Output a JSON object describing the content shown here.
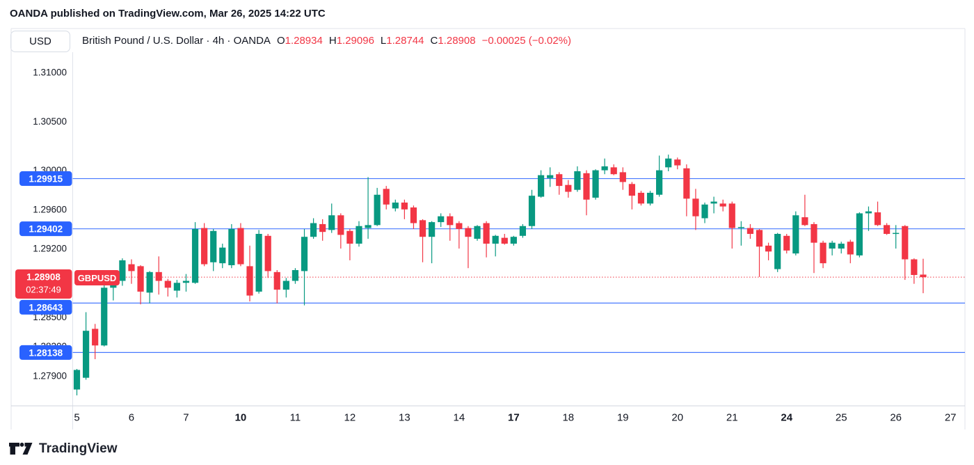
{
  "header": {
    "text": "OANDA published on TradingView.com, Mar 26, 2025 14:22 UTC"
  },
  "toolbar": {
    "currency_button": "USD"
  },
  "title": {
    "symbol_title": "British Pound / U.S. Dollar · 4h · OANDA",
    "ohlc": [
      {
        "k": "O",
        "v": "1.28934"
      },
      {
        "k": "H",
        "v": "1.29096"
      },
      {
        "k": "L",
        "v": "1.28744"
      },
      {
        "k": "C",
        "v": "1.28908"
      }
    ],
    "change": "−0.00025 (−0.02%)"
  },
  "footer": {
    "brand": "TradingView",
    "logo_icon": "tradingview-logo"
  },
  "colors": {
    "up": "#089981",
    "down": "#f23645",
    "alert_blue": "#2962ff",
    "badge_blue": "#2962ff",
    "badge_red": "#f23645",
    "text_dark": "#131722",
    "border_gray": "#e0e3eb",
    "axis_line": "#d1d4dc",
    "background": "#ffffff"
  },
  "chart_data": {
    "type": "candlestick",
    "symbol": "GBPUSD",
    "timeframe": "4h",
    "source": "OANDA",
    "title": "British Pound / U.S. Dollar",
    "grid": false,
    "legend_position": "none",
    "y_axis": {
      "side": "left",
      "visible_range": [
        1.2755,
        1.311
      ],
      "ticks": [
        {
          "label": "1.31000",
          "price": 1.31
        },
        {
          "label": "1.30500",
          "price": 1.305
        },
        {
          "label": "1.30000",
          "price": 1.3
        },
        {
          "label": "1.29600",
          "price": 1.296
        },
        {
          "label": "1.29200",
          "price": 1.292
        },
        {
          "label": "1.28500",
          "price": 1.285
        },
        {
          "label": "1.28200",
          "price": 1.282
        },
        {
          "label": "1.27900",
          "price": 1.279
        }
      ]
    },
    "x_axis": {
      "ticks": [
        {
          "label": "5",
          "index": 0,
          "bold": false
        },
        {
          "label": "6",
          "index": 6,
          "bold": false
        },
        {
          "label": "7",
          "index": 12,
          "bold": false
        },
        {
          "label": "10",
          "index": 18,
          "bold": true
        },
        {
          "label": "11",
          "index": 24,
          "bold": false
        },
        {
          "label": "12",
          "index": 30,
          "bold": false
        },
        {
          "label": "13",
          "index": 36,
          "bold": false
        },
        {
          "label": "14",
          "index": 42,
          "bold": false
        },
        {
          "label": "17",
          "index": 48,
          "bold": true
        },
        {
          "label": "18",
          "index": 54,
          "bold": false
        },
        {
          "label": "19",
          "index": 60,
          "bold": false
        },
        {
          "label": "20",
          "index": 66,
          "bold": false
        },
        {
          "label": "21",
          "index": 72,
          "bold": false
        },
        {
          "label": "24",
          "index": 78,
          "bold": true
        },
        {
          "label": "25",
          "index": 84,
          "bold": false
        },
        {
          "label": "26",
          "index": 90,
          "bold": false
        },
        {
          "label": "27",
          "index": 96,
          "bold": false
        }
      ]
    },
    "alert_lines": [
      {
        "label": "1.29915",
        "price": 1.29915,
        "badge_shift": 0
      },
      {
        "label": "1.29402",
        "price": 1.29402,
        "badge_shift": 0
      },
      {
        "label": "1.28643",
        "price": 1.28643,
        "badge_shift": 6
      },
      {
        "label": "1.28138",
        "price": 1.28138,
        "badge_shift": 0
      }
    ],
    "current_price": {
      "label": "1.28908",
      "price": 1.28908,
      "countdown": "02:37:49",
      "symbol_tag": "GBPUSD"
    },
    "candles": [
      [
        "Mar 5 00:00",
        1.2776,
        1.2797,
        1.277,
        1.2796
      ],
      [
        "Mar 5 04:00",
        1.2788,
        1.2855,
        1.2786,
        1.2836
      ],
      [
        "Mar 5 08:00",
        1.2838,
        1.2843,
        1.2807,
        1.2821
      ],
      [
        "Mar 5 12:00",
        1.2821,
        1.2884,
        1.282,
        1.288
      ],
      [
        "Mar 5 16:00",
        1.288,
        1.2887,
        1.2867,
        1.2885
      ],
      [
        "Mar 5 20:00",
        1.2887,
        1.291,
        1.2882,
        1.2908
      ],
      [
        "Mar 6 00:00",
        1.2904,
        1.2909,
        1.2884,
        1.2897
      ],
      [
        "Mar 6 04:00",
        1.2902,
        1.2903,
        1.2863,
        1.2876
      ],
      [
        "Mar 6 08:00",
        1.2875,
        1.2897,
        1.2864,
        1.2896
      ],
      [
        "Mar 6 12:00",
        1.2896,
        1.2912,
        1.2873,
        1.2887
      ],
      [
        "Mar 6 16:00",
        1.2887,
        1.2889,
        1.2871,
        1.288
      ],
      [
        "Mar 6 20:00",
        1.2877,
        1.2888,
        1.287,
        1.2885
      ],
      [
        "Mar 7 00:00",
        1.2885,
        1.2894,
        1.2876,
        1.2887
      ],
      [
        "Mar 7 04:00",
        1.2885,
        1.2947,
        1.2884,
        1.294
      ],
      [
        "Mar 7 08:00",
        1.2941,
        1.2946,
        1.2902,
        1.2904
      ],
      [
        "Mar 7 12:00",
        1.2906,
        1.294,
        1.2897,
        1.2938
      ],
      [
        "Mar 7 16:00",
        1.2905,
        1.2925,
        1.29,
        1.2921
      ],
      [
        "Mar 7 20:00",
        1.2903,
        1.2945,
        1.29,
        1.294
      ],
      [
        "Mar 10 00:00",
        1.2941,
        1.2946,
        1.2902,
        1.2904
      ],
      [
        "Mar 10 04:00",
        1.2902,
        1.2923,
        1.2866,
        1.2872
      ],
      [
        "Mar 10 08:00",
        1.2876,
        1.2939,
        1.2874,
        1.2935
      ],
      [
        "Mar 10 12:00",
        1.2933,
        1.2935,
        1.289,
        1.2897
      ],
      [
        "Mar 10 16:00",
        1.2896,
        1.2898,
        1.2864,
        1.2878
      ],
      [
        "Mar 10 20:00",
        1.2878,
        1.289,
        1.287,
        1.2887
      ],
      [
        "Mar 11 00:00",
        1.2887,
        1.29,
        1.2884,
        1.2898
      ],
      [
        "Mar 11 04:00",
        1.2897,
        1.294,
        1.2862,
        1.2932
      ],
      [
        "Mar 11 08:00",
        1.2932,
        1.2951,
        1.293,
        1.2946
      ],
      [
        "Mar 11 12:00",
        1.2945,
        1.295,
        1.2928,
        1.2937
      ],
      [
        "Mar 11 16:00",
        1.2939,
        1.2966,
        1.2936,
        1.2954
      ],
      [
        "Mar 11 20:00",
        1.2954,
        1.2956,
        1.292,
        1.2934
      ],
      [
        "Mar 12 00:00",
        1.2938,
        1.294,
        1.2908,
        1.2925
      ],
      [
        "Mar 12 04:00",
        1.2925,
        1.2948,
        1.2922,
        1.2943
      ],
      [
        "Mar 12 08:00",
        1.2941,
        1.2993,
        1.293,
        1.2944
      ],
      [
        "Mar 12 12:00",
        1.2944,
        1.2982,
        1.2943,
        1.2975
      ],
      [
        "Mar 12 16:00",
        1.2981,
        1.2984,
        1.296,
        1.2965
      ],
      [
        "Mar 12 20:00",
        1.2961,
        1.297,
        1.2958,
        1.2967
      ],
      [
        "Mar 13 00:00",
        1.2967,
        1.297,
        1.295,
        1.296
      ],
      [
        "Mar 13 04:00",
        1.2962,
        1.2964,
        1.294,
        1.2946
      ],
      [
        "Mar 13 08:00",
        1.2949,
        1.295,
        1.2906,
        1.2932
      ],
      [
        "Mar 13 12:00",
        1.2932,
        1.2948,
        1.2905,
        1.2947
      ],
      [
        "Mar 13 16:00",
        1.2947,
        1.2956,
        1.2942,
        1.2953
      ],
      [
        "Mar 13 20:00",
        1.2953,
        1.2956,
        1.2928,
        1.2944
      ],
      [
        "Mar 14 00:00",
        1.2946,
        1.2948,
        1.292,
        1.294
      ],
      [
        "Mar 14 04:00",
        1.2941,
        1.2943,
        1.29,
        1.2932
      ],
      [
        "Mar 14 08:00",
        1.293,
        1.2944,
        1.2928,
        1.2943
      ],
      [
        "Mar 14 12:00",
        1.2946,
        1.2948,
        1.2911,
        1.2925
      ],
      [
        "Mar 14 16:00",
        1.2925,
        1.2934,
        1.2912,
        1.2933
      ],
      [
        "Mar 14 20:00",
        1.2931,
        1.2935,
        1.2924,
        1.2925
      ],
      [
        "Mar 17 00:00",
        1.2925,
        1.2933,
        1.2923,
        1.2932
      ],
      [
        "Mar 17 04:00",
        1.2933,
        1.2945,
        1.2931,
        1.2943
      ],
      [
        "Mar 17 08:00",
        1.2943,
        1.298,
        1.294,
        1.2974
      ],
      [
        "Mar 17 12:00",
        1.2973,
        1.3,
        1.2972,
        1.2995
      ],
      [
        "Mar 17 16:00",
        1.2992,
        1.3003,
        1.2983,
        1.2995
      ],
      [
        "Mar 17 20:00",
        1.2996,
        1.2998,
        1.2975,
        1.2984
      ],
      [
        "Mar 18 00:00",
        1.2985,
        1.299,
        1.2972,
        1.2978
      ],
      [
        "Mar 18 04:00",
        1.298,
        1.3004,
        1.2978,
        1.2999
      ],
      [
        "Mar 18 08:00",
        1.2997,
        1.3,
        1.2954,
        1.297
      ],
      [
        "Mar 18 12:00",
        1.2972,
        1.3001,
        1.297,
        1.3
      ],
      [
        "Mar 18 16:00",
        1.3,
        1.3012,
        1.2996,
        1.3004
      ],
      [
        "Mar 18 20:00",
        1.3003,
        1.3006,
        1.2995,
        1.2996
      ],
      [
        "Mar 19 00:00",
        1.2998,
        1.3003,
        1.298,
        1.2988
      ],
      [
        "Mar 19 04:00",
        1.2986,
        1.2988,
        1.296,
        1.2974
      ],
      [
        "Mar 19 08:00",
        1.2977,
        1.2979,
        1.2964,
        1.2966
      ],
      [
        "Mar 19 12:00",
        1.2966,
        1.2979,
        1.2964,
        1.2977
      ],
      [
        "Mar 19 16:00",
        1.2975,
        1.3015,
        1.2973,
        1.3
      ],
      [
        "Mar 19 20:00",
        1.3003,
        1.3016,
        1.2999,
        1.3012
      ],
      [
        "Mar 20 00:00",
        1.3011,
        1.3013,
        1.3001,
        1.3005
      ],
      [
        "Mar 20 04:00",
        1.3002,
        1.3006,
        1.2953,
        1.2971
      ],
      [
        "Mar 20 08:00",
        1.2971,
        1.2981,
        1.2939,
        1.2953
      ],
      [
        "Mar 20 12:00",
        1.2951,
        1.2967,
        1.2946,
        1.2965
      ],
      [
        "Mar 20 16:00",
        1.2966,
        1.2973,
        1.2956,
        1.2968
      ],
      [
        "Mar 20 20:00",
        1.2966,
        1.297,
        1.2958,
        1.2963
      ],
      [
        "Mar 21 00:00",
        1.2966,
        1.2968,
        1.292,
        1.2941
      ],
      [
        "Mar 21 04:00",
        1.2942,
        1.2948,
        1.2923,
        1.2942
      ],
      [
        "Mar 21 08:00",
        1.2941,
        1.2945,
        1.293,
        1.2935
      ],
      [
        "Mar 21 12:00",
        1.2939,
        1.294,
        1.2891,
        1.2922
      ],
      [
        "Mar 21 16:00",
        1.2923,
        1.2926,
        1.2908,
        1.2917
      ],
      [
        "Mar 21 20:00",
        1.2899,
        1.2936,
        1.2896,
        1.2935
      ],
      [
        "Mar 24 00:00",
        1.2933,
        1.2935,
        1.2915,
        1.2918
      ],
      [
        "Mar 24 04:00",
        1.2915,
        1.2958,
        1.2913,
        1.2954
      ],
      [
        "Mar 24 08:00",
        1.2952,
        1.2975,
        1.2943,
        1.2944
      ],
      [
        "Mar 24 12:00",
        1.2945,
        1.2947,
        1.2895,
        1.2926
      ],
      [
        "Mar 24 16:00",
        1.2926,
        1.2928,
        1.29,
        1.2905
      ],
      [
        "Mar 24 20:00",
        1.292,
        1.2928,
        1.2913,
        1.2926
      ],
      [
        "Mar 25 00:00",
        1.292,
        1.2927,
        1.2915,
        1.2925
      ],
      [
        "Mar 25 04:00",
        1.2927,
        1.2929,
        1.2905,
        1.2914
      ],
      [
        "Mar 25 08:00",
        1.2913,
        1.2957,
        1.2911,
        1.2956
      ],
      [
        "Mar 25 12:00",
        1.2956,
        1.2963,
        1.2938,
        1.2958
      ],
      [
        "Mar 25 16:00",
        1.2957,
        1.2968,
        1.2943,
        1.2944
      ],
      [
        "Mar 25 20:00",
        1.2944,
        1.2946,
        1.2934,
        1.2935
      ],
      [
        "Mar 26 00:00",
        1.2935,
        1.2944,
        1.292,
        1.2936
      ],
      [
        "Mar 26 04:00",
        1.2943,
        1.2944,
        1.2888,
        1.2909
      ],
      [
        "Mar 26 08:00",
        1.2909,
        1.291,
        1.2884,
        1.2893
      ],
      [
        "Mar 26 12:00",
        1.28934,
        1.29096,
        1.28744,
        1.28908
      ]
    ]
  }
}
